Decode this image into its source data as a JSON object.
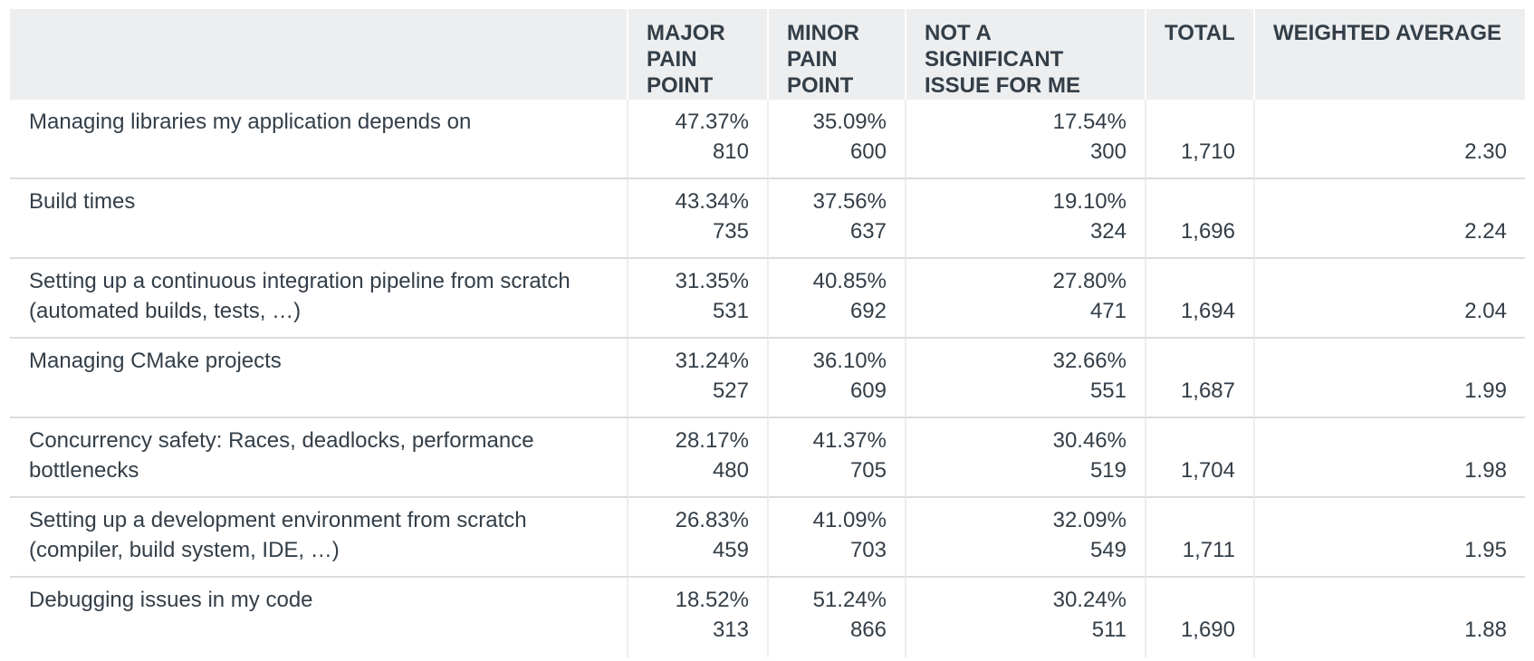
{
  "chart_data": {
    "type": "table",
    "columns": [
      "",
      "MAJOR PAIN POINT",
      "MINOR PAIN POINT",
      "NOT A SIGNIFICANT ISSUE FOR ME",
      "TOTAL",
      "WEIGHTED AVERAGE"
    ],
    "rows": [
      {
        "label": "Managing libraries my application depends on",
        "major": {
          "pct": "47.37%",
          "count": "810"
        },
        "minor": {
          "pct": "35.09%",
          "count": "600"
        },
        "not_significant": {
          "pct": "17.54%",
          "count": "300"
        },
        "total": "1,710",
        "weighted_average": "2.30"
      },
      {
        "label": "Build times",
        "major": {
          "pct": "43.34%",
          "count": "735"
        },
        "minor": {
          "pct": "37.56%",
          "count": "637"
        },
        "not_significant": {
          "pct": "19.10%",
          "count": "324"
        },
        "total": "1,696",
        "weighted_average": "2.24"
      },
      {
        "label": "Setting up a continuous integration pipeline from scratch (automated builds, tests, …)",
        "major": {
          "pct": "31.35%",
          "count": "531"
        },
        "minor": {
          "pct": "40.85%",
          "count": "692"
        },
        "not_significant": {
          "pct": "27.80%",
          "count": "471"
        },
        "total": "1,694",
        "weighted_average": "2.04"
      },
      {
        "label": "Managing CMake projects",
        "major": {
          "pct": "31.24%",
          "count": "527"
        },
        "minor": {
          "pct": "36.10%",
          "count": "609"
        },
        "not_significant": {
          "pct": "32.66%",
          "count": "551"
        },
        "total": "1,687",
        "weighted_average": "1.99"
      },
      {
        "label": "Concurrency safety: Races, deadlocks, performance bottlenecks",
        "major": {
          "pct": "28.17%",
          "count": "480"
        },
        "minor": {
          "pct": "41.37%",
          "count": "705"
        },
        "not_significant": {
          "pct": "30.46%",
          "count": "519"
        },
        "total": "1,704",
        "weighted_average": "1.98"
      },
      {
        "label": "Setting up a development environment from scratch (compiler, build system, IDE, …)",
        "major": {
          "pct": "26.83%",
          "count": "459"
        },
        "minor": {
          "pct": "41.09%",
          "count": "703"
        },
        "not_significant": {
          "pct": "32.09%",
          "count": "549"
        },
        "total": "1,711",
        "weighted_average": "1.95"
      },
      {
        "label": "Debugging issues in my code",
        "major": {
          "pct": "18.52%",
          "count": "313"
        },
        "minor": {
          "pct": "51.24%",
          "count": "866"
        },
        "not_significant": {
          "pct": "30.24%",
          "count": "511"
        },
        "total": "1,690",
        "weighted_average": "1.88"
      }
    ]
  },
  "colors": {
    "header_bg": "#eceeef",
    "text": "#333e48",
    "row_divider": "#d9dcde"
  }
}
